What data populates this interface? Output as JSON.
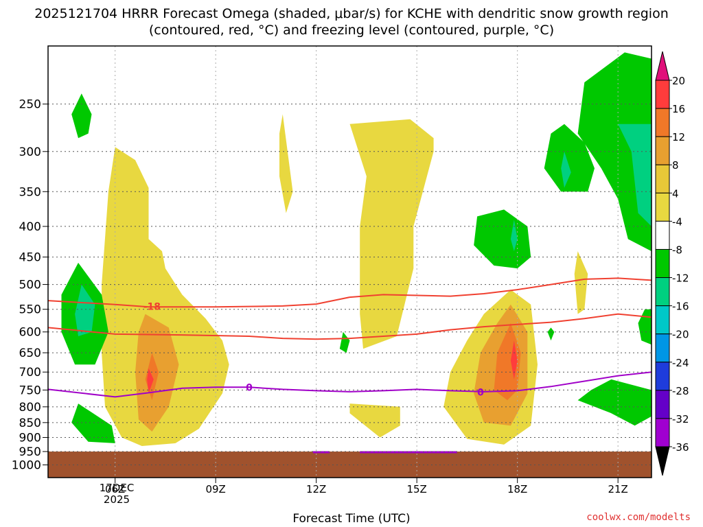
{
  "title": "2025121704 HRRR Forecast Omega (shaded, μbar/s) for KCHE with dendritic snow growth region (contoured, red, °C) and freezing level (contoured, purple, °C)",
  "credit": "coolwx.com/modelts",
  "date_label": {
    "line1": "17DEC",
    "line2": "2025"
  },
  "chart_data": {
    "type": "time-height cross section (filled contour)",
    "xlabel": "Forecast Time (UTC)",
    "ylabel": "",
    "x_ticks": [
      "06Z",
      "09Z",
      "12Z",
      "15Z",
      "18Z",
      "21Z"
    ],
    "x_tick_hours": [
      6,
      9,
      12,
      15,
      18,
      21
    ],
    "x_range_hours": [
      4,
      22
    ],
    "y_ticks_hpa": [
      250,
      300,
      350,
      400,
      450,
      500,
      550,
      600,
      650,
      700,
      750,
      800,
      850,
      900,
      950,
      1000
    ],
    "y_scale": "log pressure",
    "y_range_hpa": [
      200,
      1050
    ],
    "grid": true,
    "colorbar": {
      "levels": [
        20,
        16,
        12,
        8,
        4,
        -4,
        -8,
        -12,
        -16,
        -20,
        -24,
        -28,
        -32,
        -36
      ],
      "colors": [
        "#ff3c3c",
        "#f07828",
        "#e8a030",
        "#e8c838",
        "#e8d840",
        "#ffffff",
        "#00c800",
        "#00d080",
        "#00c8c8",
        "#0096e6",
        "#1e3cdc",
        "#6400c8",
        "#a000d0",
        "#a0a0a0"
      ],
      "top_arrow_color": "#e0107a",
      "bottom_arrow_color": "#000000"
    },
    "shading_colors": {
      "yellow": "#e8d840",
      "orange": "#e8a030",
      "darkorange": "#f07828",
      "red": "#ff3c3c",
      "green": "#00c800",
      "teal": "#00d080",
      "cyan": "#20c8c0",
      "ground": "#a0522d"
    },
    "isotherms": [
      {
        "name": "-18",
        "color": "#f04030",
        "points": [
          [
            4,
            532
          ],
          [
            6,
            540
          ],
          [
            7,
            545
          ],
          [
            9,
            545
          ],
          [
            11,
            543
          ],
          [
            12,
            539
          ],
          [
            13,
            525
          ],
          [
            14,
            520
          ],
          [
            16,
            523
          ],
          [
            17,
            518
          ],
          [
            18,
            510
          ],
          [
            19,
            500
          ],
          [
            20,
            490
          ],
          [
            21,
            488
          ],
          [
            22,
            492
          ]
        ]
      },
      {
        "name": "",
        "color": "#f04030",
        "points": [
          [
            4,
            590
          ],
          [
            6,
            605
          ],
          [
            8,
            607
          ],
          [
            10,
            610
          ],
          [
            11,
            615
          ],
          [
            12,
            617
          ],
          [
            13,
            615
          ],
          [
            15,
            605
          ],
          [
            16,
            595
          ],
          [
            17,
            588
          ],
          [
            18,
            583
          ],
          [
            19,
            578
          ],
          [
            20,
            570
          ],
          [
            21,
            560
          ],
          [
            22,
            567
          ]
        ]
      },
      {
        "name": "0",
        "color": "#a000c8",
        "points": [
          [
            4,
            748
          ],
          [
            6,
            770
          ],
          [
            7,
            758
          ],
          [
            8,
            745
          ],
          [
            9,
            742
          ],
          [
            10,
            742
          ],
          [
            11,
            748
          ],
          [
            12,
            752
          ],
          [
            13,
            755
          ],
          [
            14,
            752
          ],
          [
            15,
            748
          ],
          [
            16,
            752
          ],
          [
            17,
            755
          ],
          [
            18,
            752
          ],
          [
            19,
            740
          ],
          [
            20,
            725
          ],
          [
            21,
            710
          ],
          [
            22,
            700
          ]
        ]
      }
    ],
    "contour_labels": [
      {
        "text": "-18",
        "x": 7.1,
        "p": 544,
        "color": "#f04030"
      },
      {
        "text": "0",
        "x": 10.0,
        "p": 742,
        "color": "#a000c8"
      },
      {
        "text": "0",
        "x": 16.9,
        "p": 756,
        "color": "#a000c8"
      }
    ],
    "regions": [
      {
        "fill": "yellow",
        "points": [
          [
            6.0,
            295
          ],
          [
            6.6,
            310
          ],
          [
            7.0,
            345
          ],
          [
            7.0,
            420
          ],
          [
            7.4,
            440
          ],
          [
            7.5,
            470
          ],
          [
            8.0,
            520
          ],
          [
            8.7,
            570
          ],
          [
            9.2,
            620
          ],
          [
            9.4,
            680
          ],
          [
            9.2,
            760
          ],
          [
            8.5,
            870
          ],
          [
            7.8,
            920
          ],
          [
            6.8,
            930
          ],
          [
            6.2,
            900
          ],
          [
            5.7,
            800
          ],
          [
            5.6,
            650
          ],
          [
            5.6,
            500
          ],
          [
            5.8,
            350
          ]
        ]
      },
      {
        "fill": "orange",
        "points": [
          [
            6.9,
            560
          ],
          [
            7.6,
            590
          ],
          [
            7.9,
            680
          ],
          [
            7.6,
            800
          ],
          [
            7.1,
            880
          ],
          [
            6.7,
            840
          ],
          [
            6.6,
            700
          ],
          [
            6.7,
            600
          ]
        ]
      },
      {
        "fill": "darkorange",
        "points": [
          [
            7.1,
            650
          ],
          [
            7.3,
            700
          ],
          [
            7.1,
            780
          ],
          [
            6.9,
            720
          ]
        ]
      },
      {
        "fill": "red",
        "points": [
          [
            7.0,
            690
          ],
          [
            7.15,
            720
          ],
          [
            7.0,
            760
          ],
          [
            6.95,
            720
          ]
        ]
      },
      {
        "fill": "yellow",
        "points": [
          [
            11.0,
            260
          ],
          [
            11.3,
            350
          ],
          [
            11.1,
            380
          ],
          [
            10.9,
            330
          ],
          [
            10.9,
            280
          ]
        ]
      },
      {
        "fill": "yellow",
        "points": [
          [
            13.0,
            270
          ],
          [
            14.8,
            265
          ],
          [
            15.5,
            285
          ],
          [
            15.5,
            300
          ],
          [
            14.9,
            400
          ],
          [
            14.9,
            470
          ],
          [
            14.4,
            610
          ],
          [
            13.4,
            640
          ],
          [
            13.3,
            560
          ],
          [
            13.3,
            400
          ],
          [
            13.5,
            330
          ]
        ]
      },
      {
        "fill": "yellow",
        "points": [
          [
            13.0,
            790
          ],
          [
            14.5,
            800
          ],
          [
            14.5,
            860
          ],
          [
            13.9,
            900
          ],
          [
            13.0,
            820
          ]
        ]
      },
      {
        "fill": "yellow",
        "points": [
          [
            17.8,
            510
          ],
          [
            18.4,
            540
          ],
          [
            18.6,
            680
          ],
          [
            18.4,
            860
          ],
          [
            17.6,
            925
          ],
          [
            16.5,
            905
          ],
          [
            15.8,
            800
          ],
          [
            16.0,
            700
          ],
          [
            16.5,
            620
          ],
          [
            17.0,
            560
          ]
        ]
      },
      {
        "fill": "orange",
        "points": [
          [
            17.8,
            540
          ],
          [
            18.3,
            600
          ],
          [
            18.3,
            760
          ],
          [
            17.8,
            860
          ],
          [
            17.0,
            850
          ],
          [
            16.7,
            760
          ],
          [
            16.9,
            650
          ],
          [
            17.4,
            580
          ]
        ]
      },
      {
        "fill": "darkorange",
        "points": [
          [
            17.8,
            580
          ],
          [
            18.1,
            650
          ],
          [
            18.0,
            750
          ],
          [
            17.7,
            780
          ],
          [
            17.3,
            750
          ],
          [
            17.4,
            650
          ]
        ]
      },
      {
        "fill": "red",
        "points": [
          [
            17.9,
            620
          ],
          [
            18.0,
            670
          ],
          [
            17.9,
            720
          ],
          [
            17.8,
            670
          ]
        ]
      },
      {
        "fill": "yellow",
        "points": [
          [
            19.8,
            440
          ],
          [
            20.1,
            480
          ],
          [
            20.0,
            550
          ],
          [
            19.8,
            560
          ],
          [
            19.7,
            480
          ]
        ]
      },
      {
        "fill": "green",
        "points": [
          [
            5.0,
            240
          ],
          [
            5.3,
            260
          ],
          [
            5.2,
            280
          ],
          [
            4.9,
            285
          ],
          [
            4.7,
            260
          ]
        ]
      },
      {
        "fill": "green",
        "points": [
          [
            4.9,
            460
          ],
          [
            5.6,
            520
          ],
          [
            5.8,
            600
          ],
          [
            5.4,
            680
          ],
          [
            4.8,
            680
          ],
          [
            4.4,
            600
          ],
          [
            4.4,
            520
          ]
        ]
      },
      {
        "fill": "teal",
        "points": [
          [
            5.0,
            500
          ],
          [
            5.4,
            540
          ],
          [
            5.3,
            600
          ],
          [
            4.9,
            610
          ],
          [
            4.8,
            560
          ]
        ]
      },
      {
        "fill": "green",
        "points": [
          [
            4.9,
            790
          ],
          [
            5.9,
            860
          ],
          [
            6.0,
            920
          ],
          [
            5.2,
            915
          ],
          [
            4.7,
            850
          ]
        ]
      },
      {
        "fill": "green",
        "points": [
          [
            16.8,
            385
          ],
          [
            17.6,
            375
          ],
          [
            18.3,
            400
          ],
          [
            18.4,
            450
          ],
          [
            18.0,
            470
          ],
          [
            17.3,
            465
          ],
          [
            16.7,
            430
          ]
        ]
      },
      {
        "fill": "teal",
        "points": [
          [
            17.9,
            390
          ],
          [
            18.0,
            420
          ],
          [
            17.9,
            440
          ],
          [
            17.8,
            420
          ]
        ]
      },
      {
        "fill": "green",
        "points": [
          [
            19.4,
            270
          ],
          [
            20.0,
            290
          ],
          [
            20.3,
            320
          ],
          [
            20.1,
            350
          ],
          [
            19.3,
            350
          ],
          [
            18.8,
            320
          ],
          [
            19.0,
            280
          ]
        ]
      },
      {
        "fill": "teal",
        "points": [
          [
            19.4,
            300
          ],
          [
            19.6,
            325
          ],
          [
            19.4,
            345
          ],
          [
            19.3,
            320
          ]
        ]
      },
      {
        "fill": "green",
        "points": [
          [
            21.2,
            205
          ],
          [
            22.0,
            210
          ],
          [
            22.0,
            440
          ],
          [
            21.3,
            420
          ],
          [
            21.0,
            360
          ],
          [
            20.5,
            320
          ],
          [
            19.8,
            280
          ],
          [
            20.0,
            230
          ]
        ]
      },
      {
        "fill": "teal",
        "points": [
          [
            21.0,
            270
          ],
          [
            22.0,
            270
          ],
          [
            22.0,
            400
          ],
          [
            21.6,
            380
          ],
          [
            21.4,
            300
          ]
        ]
      },
      {
        "fill": "green",
        "points": [
          [
            19.0,
            590
          ],
          [
            19.1,
            600
          ],
          [
            19.0,
            620
          ],
          [
            18.9,
            600
          ]
        ]
      },
      {
        "fill": "green",
        "points": [
          [
            21.8,
            550
          ],
          [
            22.0,
            550
          ],
          [
            22.0,
            630
          ],
          [
            21.7,
            620
          ],
          [
            21.6,
            580
          ]
        ]
      },
      {
        "fill": "green",
        "points": [
          [
            20.8,
            720
          ],
          [
            22.0,
            750
          ],
          [
            22.0,
            830
          ],
          [
            21.5,
            860
          ],
          [
            20.8,
            820
          ],
          [
            19.8,
            780
          ],
          [
            20.2,
            750
          ]
        ]
      },
      {
        "fill": "green",
        "points": [
          [
            12.8,
            600
          ],
          [
            13.0,
            620
          ],
          [
            12.9,
            650
          ],
          [
            12.7,
            640
          ]
        ]
      }
    ],
    "ground": {
      "top_p": 950,
      "fill": "ground"
    },
    "purple_surface_segments": [
      [
        11.9,
        12.4
      ],
      [
        13.3,
        16.2
      ]
    ]
  }
}
